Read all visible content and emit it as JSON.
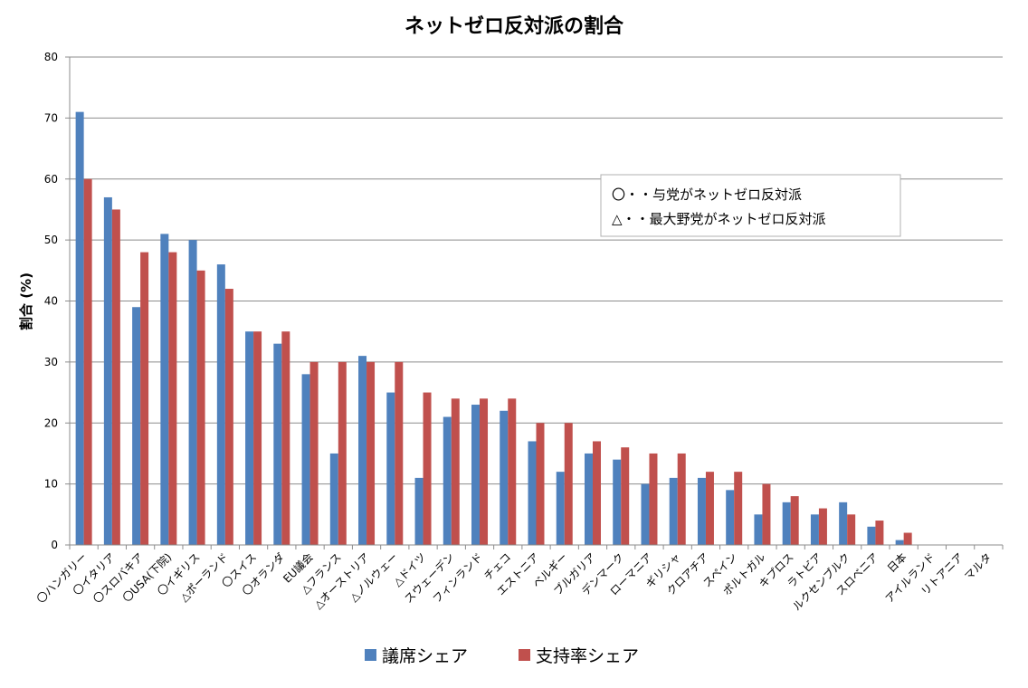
{
  "chart_data": {
    "type": "bar",
    "title": "ネットゼロ反対派の割合",
    "xlabel": "",
    "ylabel": "割合 (%)",
    "ylim": [
      0,
      80
    ],
    "yticks": [
      0,
      10,
      20,
      30,
      40,
      50,
      60,
      70,
      80
    ],
    "grid": true,
    "legend_position": "bottom",
    "categories": [
      "〇ハンガリー",
      "〇イタリア",
      "〇スロバキア",
      "〇USA(下院)",
      "〇イギリス",
      "△ポーランド",
      "〇スイス",
      "〇オランダ",
      "EU議会",
      "△フランス",
      "△オーストリア",
      "△ノルウェー",
      "△ドイツ",
      "スウェーデン",
      "フィンランド",
      "チェコ",
      "エストニア",
      "ベルギー",
      "ブルガリア",
      "デンマーク",
      "ローマニア",
      "ギリシャ",
      "クロアチア",
      "スペイン",
      "ポルトガル",
      "キプロス",
      "ラトビア",
      "ルクセンブルク",
      "スロベニア",
      "日本",
      "アイルランド",
      "リトアニア",
      "マルタ"
    ],
    "series": [
      {
        "name": "議席シェア",
        "color": "#4f81bd",
        "values": [
          71,
          57,
          39,
          51,
          50,
          46,
          35,
          33,
          28,
          15,
          31,
          25,
          11,
          21,
          23,
          22,
          17,
          12,
          15,
          14,
          10,
          11,
          11,
          9,
          5,
          7,
          5,
          7,
          3,
          0.8,
          0,
          0,
          0
        ]
      },
      {
        "name": "支持率シェア",
        "color": "#c0504d",
        "values": [
          60,
          55,
          48,
          48,
          45,
          42,
          35,
          35,
          30,
          30,
          30,
          30,
          25,
          24,
          24,
          24,
          20,
          20,
          17,
          16,
          15,
          15,
          12,
          12,
          10,
          8,
          6,
          5,
          4,
          2,
          0,
          0,
          0
        ]
      }
    ],
    "annotations": [
      "〇・・与党がネットゼロ反対派",
      "△・・最大野党がネットゼロ反対派"
    ]
  }
}
